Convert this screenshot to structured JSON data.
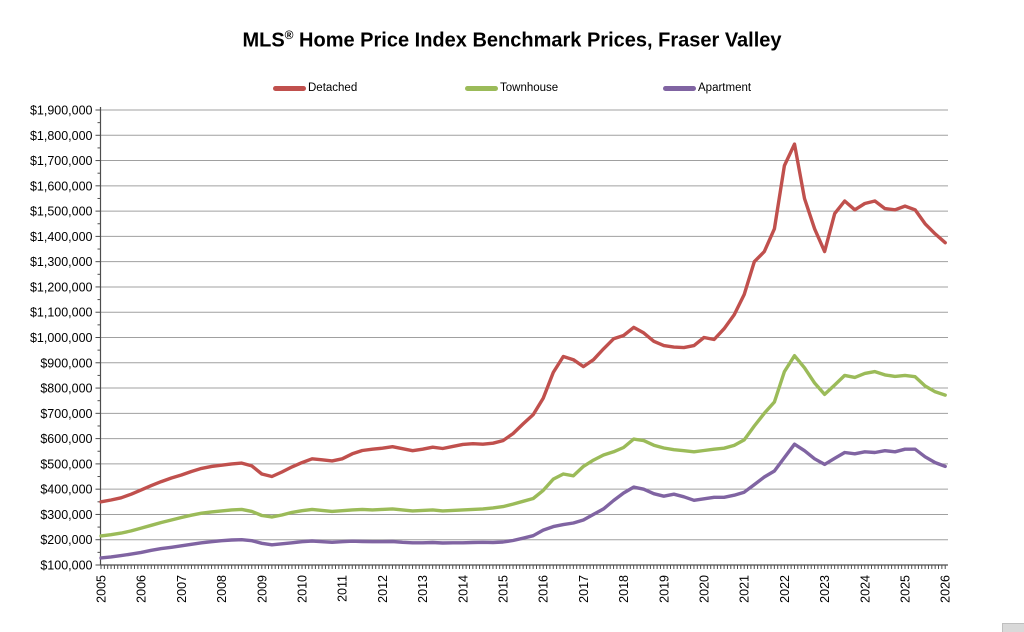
{
  "title": "MLS® Home Price Index Benchmark Prices, Fraser Valley",
  "legend": [
    {
      "label": "Detached",
      "color": "#C0504D"
    },
    {
      "label": "Townhouse",
      "color": "#9BBB59"
    },
    {
      "label": "Apartment",
      "color": "#8064A2"
    }
  ],
  "chart_data": {
    "type": "line",
    "title": "MLS® Home Price Index Benchmark Prices, Fraser Valley",
    "xlabel": "",
    "ylabel": "",
    "x_start": 2005,
    "x_step": 0.25,
    "x_tick_labels": [
      "2005",
      "2006",
      "2007",
      "2008",
      "2009",
      "2010",
      "2011",
      "2012",
      "2013",
      "2014",
      "2015",
      "2016",
      "2017",
      "2018",
      "2019",
      "2020",
      "2021",
      "2022",
      "2023",
      "2024",
      "2025",
      "2026"
    ],
    "ylim": [
      100000,
      1900000
    ],
    "y_tick_step": 100000,
    "y_minor_tick_step": 50000,
    "x_minor_tick_step_years": 0.0833,
    "y_tick_format": "$#,##0",
    "grid": "horizontal",
    "legend_position": "top",
    "grid_color": "#a0a0a0",
    "axis_color": "#4d4d4d",
    "series": [
      {
        "name": "Detached",
        "color": "#C0504D",
        "values": [
          350000,
          357000,
          366000,
          380000,
          397000,
          414000,
          430000,
          444000,
          456000,
          470000,
          482000,
          490000,
          495000,
          500000,
          503000,
          492000,
          460000,
          450000,
          468000,
          488000,
          505000,
          520000,
          516000,
          512000,
          520000,
          540000,
          553000,
          558000,
          562000,
          568000,
          560000,
          552000,
          558000,
          566000,
          561000,
          569000,
          577000,
          580000,
          578000,
          582000,
          592000,
          620000,
          658000,
          695000,
          760000,
          862000,
          925000,
          912000,
          885000,
          912000,
          955000,
          995000,
          1008000,
          1040000,
          1018000,
          985000,
          968000,
          962000,
          960000,
          968000,
          1000000,
          992000,
          1035000,
          1090000,
          1170000,
          1300000,
          1340000,
          1430000,
          1680000,
          1765000,
          1550000,
          1430000,
          1340000,
          1490000,
          1540000,
          1505000,
          1530000,
          1540000,
          1510000,
          1505000,
          1520000,
          1505000,
          1450000,
          1410000,
          1375000
        ]
      },
      {
        "name": "Townhouse",
        "color": "#9BBB59",
        "values": [
          215000,
          220000,
          226000,
          235000,
          246000,
          257000,
          268000,
          278000,
          288000,
          297000,
          305000,
          310000,
          314000,
          318000,
          320000,
          312000,
          296000,
          290000,
          298000,
          308000,
          315000,
          320000,
          316000,
          312000,
          315000,
          318000,
          320000,
          318000,
          320000,
          322000,
          318000,
          314000,
          316000,
          318000,
          314000,
          316000,
          318000,
          320000,
          322000,
          326000,
          331000,
          341000,
          352000,
          363000,
          395000,
          440000,
          460000,
          453000,
          490000,
          515000,
          535000,
          548000,
          565000,
          598000,
          592000,
          574000,
          563000,
          556000,
          552000,
          548000,
          553000,
          558000,
          562000,
          573000,
          595000,
          650000,
          700000,
          745000,
          865000,
          928000,
          880000,
          820000,
          775000,
          812000,
          850000,
          842000,
          858000,
          865000,
          852000,
          846000,
          850000,
          845000,
          808000,
          785000,
          772000
        ]
      },
      {
        "name": "Apartment",
        "color": "#8064A2",
        "values": [
          128000,
          132000,
          137000,
          143000,
          150000,
          158000,
          165000,
          170000,
          176000,
          182000,
          188000,
          192000,
          196000,
          199000,
          200000,
          196000,
          186000,
          180000,
          184000,
          188000,
          192000,
          195000,
          192000,
          190000,
          192000,
          194000,
          193000,
          192000,
          192000,
          193000,
          190000,
          188000,
          188000,
          189000,
          187000,
          188000,
          188000,
          189000,
          190000,
          189000,
          191000,
          197000,
          206000,
          216000,
          238000,
          252000,
          260000,
          266000,
          278000,
          300000,
          322000,
          355000,
          385000,
          408000,
          400000,
          382000,
          372000,
          380000,
          370000,
          356000,
          362000,
          368000,
          368000,
          376000,
          388000,
          418000,
          448000,
          472000,
          525000,
          578000,
          552000,
          520000,
          498000,
          522000,
          545000,
          540000,
          548000,
          545000,
          552000,
          548000,
          558000,
          558000,
          528000,
          505000,
          490000
        ]
      }
    ]
  }
}
